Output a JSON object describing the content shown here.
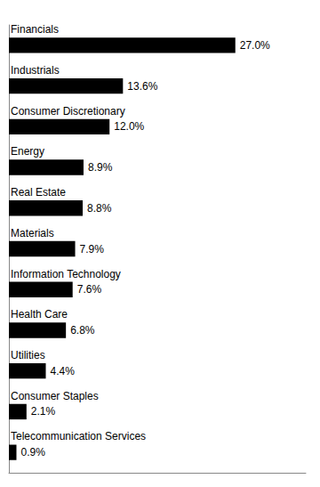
{
  "chart_data": {
    "type": "bar",
    "orientation": "horizontal",
    "categories": [
      "Financials",
      "Industrials",
      "Consumer Discretionary",
      "Energy",
      "Real Estate",
      "Materials",
      "Information Technology",
      "Health Care",
      "Utilities",
      "Consumer Staples",
      "Telecommunication Services"
    ],
    "values": [
      27.0,
      13.6,
      12.0,
      8.9,
      8.8,
      7.9,
      7.6,
      6.8,
      4.4,
      2.1,
      0.9
    ],
    "value_labels": [
      "27.0%",
      "13.6%",
      "12.0%",
      "8.9%",
      "8.8%",
      "7.9%",
      "7.6%",
      "6.8%",
      "4.4%",
      "2.1%",
      "0.9%"
    ],
    "color": "#000000",
    "xlim": [
      0,
      35.4
    ],
    "grid": false,
    "tick_labels": "y",
    "data_labels": true
  }
}
